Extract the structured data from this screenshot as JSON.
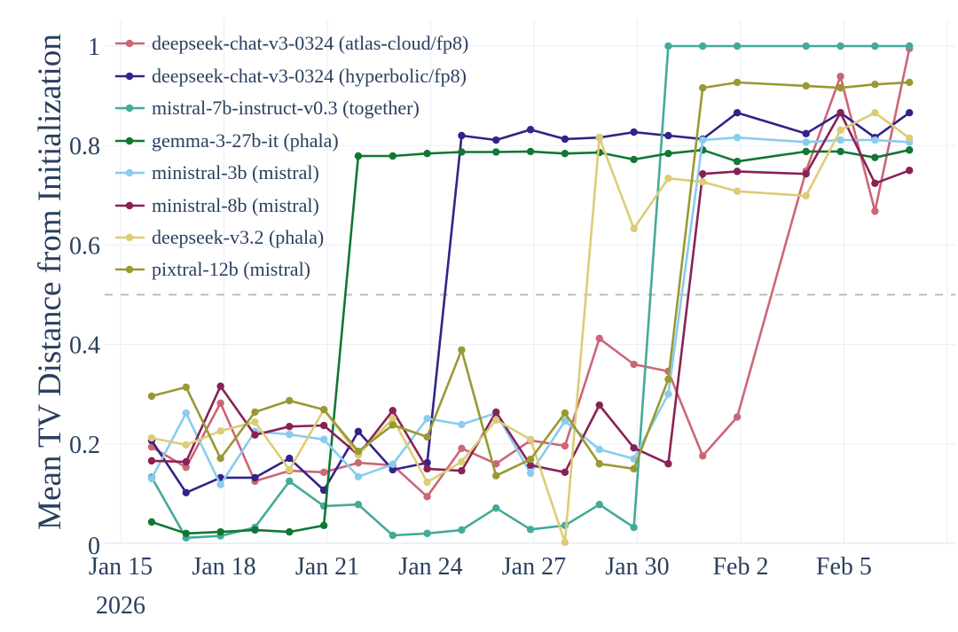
{
  "chart_data": {
    "type": "line",
    "title": "",
    "xlabel": "",
    "ylabel": "Mean TV Distance from Initialization",
    "ylim": [
      0,
      1.0
    ],
    "xlim": [
      "2026-01-15",
      "2026-02-08"
    ],
    "grid": true,
    "legend_position": "top-left",
    "y_ticks": [
      {
        "value": 0,
        "label": "0"
      },
      {
        "value": 0.2,
        "label": "0.2"
      },
      {
        "value": 0.4,
        "label": "0.4"
      },
      {
        "value": 0.6,
        "label": "0.6"
      },
      {
        "value": 0.8,
        "label": "0.8"
      },
      {
        "value": 1,
        "label": "1"
      }
    ],
    "x_ticks": [
      {
        "date": "2026-01-15",
        "label": "Jan 15",
        "sublabel": "2026"
      },
      {
        "date": "2026-01-18",
        "label": "Jan 18"
      },
      {
        "date": "2026-01-21",
        "label": "Jan 21"
      },
      {
        "date": "2026-01-24",
        "label": "Jan 24"
      },
      {
        "date": "2026-01-27",
        "label": "Jan 27"
      },
      {
        "date": "2026-01-30",
        "label": "Jan 30"
      },
      {
        "date": "2026-02-02",
        "label": "Feb 2"
      },
      {
        "date": "2026-02-05",
        "label": "Feb 5"
      },
      {
        "date": "2026-02-08",
        "label": ""
      }
    ],
    "reference_line": {
      "y": 0.5,
      "style": "dashed",
      "color": "#bdbdbd"
    },
    "x": [
      "2026-01-16",
      "2026-01-17",
      "2026-01-18",
      "2026-01-19",
      "2026-01-20",
      "2026-01-21",
      "2026-01-22",
      "2026-01-23",
      "2026-01-24",
      "2026-01-25",
      "2026-01-26",
      "2026-01-27",
      "2026-01-28",
      "2026-01-29",
      "2026-01-30",
      "2026-01-31",
      "2026-02-01",
      "2026-02-02",
      "2026-02-04",
      "2026-02-05",
      "2026-02-06",
      "2026-02-07"
    ],
    "series": [
      {
        "name": "deepseek-chat-v3-0324 (atlas-cloud/fp8)",
        "color": "#CC6677",
        "values": [
          0.194,
          0.153,
          0.282,
          0.125,
          0.146,
          0.143,
          0.162,
          0.157,
          0.094,
          0.191,
          0.16,
          0.207,
          0.196,
          0.412,
          0.36,
          0.346,
          0.176,
          0.254,
          0.749,
          0.939,
          0.668,
          0.995
        ]
      },
      {
        "name": "deepseek-chat-v3-0324 (hyperbolic/fp8)",
        "color": "#332288",
        "values": [
          0.207,
          0.102,
          0.132,
          0.132,
          0.171,
          0.107,
          0.225,
          0.148,
          0.162,
          0.82,
          0.811,
          0.832,
          0.813,
          0.816,
          0.827,
          0.82,
          0.813,
          0.866,
          0.824,
          0.866,
          0.816,
          0.866
        ]
      },
      {
        "name": "mistral-7b-instruct-v0.3 (together)",
        "color": "#44AA99",
        "values": [
          0.133,
          0.011,
          0.015,
          0.032,
          0.125,
          0.075,
          0.078,
          0.016,
          0.02,
          0.027,
          0.071,
          0.028,
          0.036,
          0.078,
          0.032,
          1.0,
          1.0,
          1.0,
          1.0,
          1.0,
          1.0,
          1.0
        ]
      },
      {
        "name": "gemma-3-27b-it (phala)",
        "color": "#117733",
        "values": [
          0.043,
          0.02,
          0.023,
          0.027,
          0.023,
          0.036,
          0.779,
          0.779,
          0.784,
          0.787,
          0.787,
          0.788,
          0.784,
          0.786,
          0.772,
          0.784,
          0.791,
          0.768,
          0.788,
          0.788,
          0.776,
          0.791
        ]
      },
      {
        "name": "ministral-3b (mistral)",
        "color": "#88CCEE",
        "values": [
          0.13,
          0.262,
          0.118,
          0.225,
          0.219,
          0.209,
          0.134,
          0.159,
          0.251,
          0.239,
          0.262,
          0.141,
          0.246,
          0.189,
          0.17,
          0.3,
          0.811,
          0.816,
          0.807,
          0.811,
          0.811,
          0.807
        ]
      },
      {
        "name": "ministral-8b (mistral)",
        "color": "#882255",
        "values": [
          0.166,
          0.164,
          0.316,
          0.218,
          0.235,
          0.237,
          0.178,
          0.267,
          0.15,
          0.146,
          0.264,
          0.157,
          0.143,
          0.278,
          0.192,
          0.16,
          0.743,
          0.748,
          0.743,
          0.866,
          0.724,
          0.75
        ]
      },
      {
        "name": "deepseek-v3.2 (phala)",
        "color": "#DDCC77",
        "values": [
          0.212,
          0.198,
          0.226,
          0.244,
          0.148,
          0.269,
          0.178,
          0.251,
          0.123,
          0.164,
          0.248,
          0.209,
          0.002,
          0.816,
          0.633,
          0.734,
          0.727,
          0.708,
          0.699,
          0.831,
          0.866,
          0.815
        ]
      },
      {
        "name": "pixtral-12b (mistral)",
        "color": "#999933",
        "values": [
          0.296,
          0.314,
          0.171,
          0.264,
          0.287,
          0.269,
          0.185,
          0.238,
          0.214,
          0.389,
          0.136,
          0.169,
          0.262,
          0.16,
          0.15,
          0.33,
          0.916,
          0.927,
          0.92,
          0.916,
          0.923,
          0.927
        ]
      }
    ]
  }
}
